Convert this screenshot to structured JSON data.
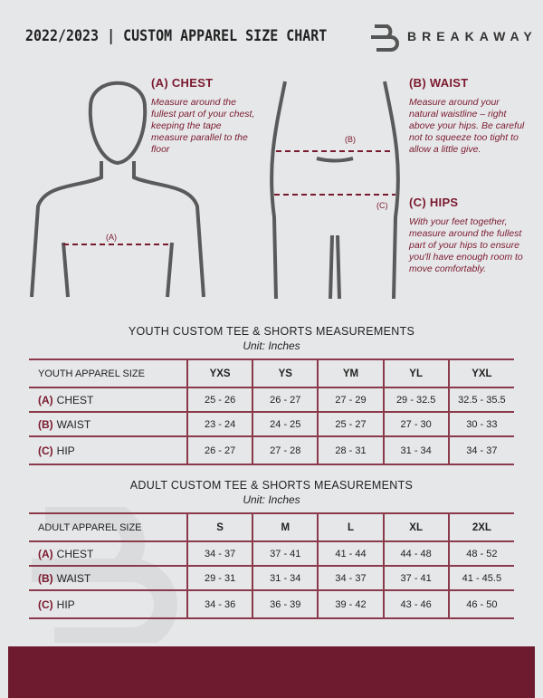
{
  "header": {
    "title": "2022/2023  |  CUSTOM APPAREL SIZE CHART",
    "brand": "BREAKAWAY"
  },
  "measures": {
    "chest": {
      "title": "(A) CHEST",
      "desc": "Measure around the fullest part of your chest, keeping the tape measure parallel to the floor",
      "marker": "(A)"
    },
    "waist": {
      "title": "(B) WAIST",
      "desc": "Measure around your natural waistline – right above your hips. Be careful not to squeeze too tight to allow a little give.",
      "marker": "(B)"
    },
    "hips": {
      "title": "(C) HIPS",
      "desc": "With your feet together, measure around the fullest part of your hips to ensure you'll have enough room to move comfortably.",
      "marker": "(C)"
    }
  },
  "youth": {
    "title": "YOUTH CUSTOM TEE & SHORTS MEASUREMENTS",
    "unit": "Unit: Inches",
    "header": [
      "YOUTH APPAREL SIZE",
      "YXS",
      "YS",
      "YM",
      "YL",
      "YXL"
    ],
    "rows": [
      {
        "tag": "(A)",
        "label": "CHEST",
        "values": [
          "25 - 26",
          "26 - 27",
          "27 - 29",
          "29 - 32.5",
          "32.5 - 35.5"
        ]
      },
      {
        "tag": "(B)",
        "label": "WAIST",
        "values": [
          "23 - 24",
          "24 - 25",
          "25 - 27",
          "27 - 30",
          "30 - 33"
        ]
      },
      {
        "tag": "(C)",
        "label": "HIP",
        "values": [
          "26 - 27",
          "27 - 28",
          "28 - 31",
          "31 - 34",
          "34 - 37"
        ]
      }
    ]
  },
  "adult": {
    "title": "ADULT CUSTOM TEE & SHORTS MEASUREMENTS",
    "unit": "Unit: Inches",
    "header": [
      "ADULT APPAREL SIZE",
      "S",
      "M",
      "L",
      "XL",
      "2XL"
    ],
    "rows": [
      {
        "tag": "(A)",
        "label": "CHEST",
        "values": [
          "34 - 37",
          "37 - 41",
          "41 - 44",
          "44 - 48",
          "48 - 52"
        ]
      },
      {
        "tag": "(B)",
        "label": "WAIST",
        "values": [
          "29 - 31",
          "31 - 34",
          "34 - 37",
          "37 - 41",
          "41 - 45.5"
        ]
      },
      {
        "tag": "(C)",
        "label": "HIP",
        "values": [
          "34 - 36",
          "36 - 39",
          "39 - 42",
          "43 - 46",
          "46 - 50"
        ]
      }
    ]
  },
  "colors": {
    "accent": "#6e1a2f",
    "background": "#e6e7e9"
  }
}
